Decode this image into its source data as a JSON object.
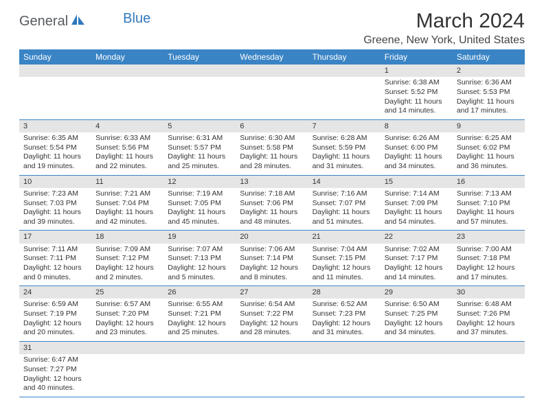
{
  "brand": {
    "part1": "General",
    "part2": "Blue"
  },
  "title": "March 2024",
  "location": "Greene, New York, United States",
  "type": "table",
  "header_bg": "#3a84c5",
  "header_fg": "#ffffff",
  "daynum_bg": "#e5e5e5",
  "border_color": "#3a84c5",
  "columns": [
    "Sunday",
    "Monday",
    "Tuesday",
    "Wednesday",
    "Thursday",
    "Friday",
    "Saturday"
  ],
  "weeks": [
    {
      "nums": [
        "",
        "",
        "",
        "",
        "",
        "1",
        "2"
      ],
      "cells": [
        null,
        null,
        null,
        null,
        null,
        {
          "sunrise": "Sunrise: 6:38 AM",
          "sunset": "Sunset: 5:52 PM",
          "d1": "Daylight: 11 hours",
          "d2": "and 14 minutes."
        },
        {
          "sunrise": "Sunrise: 6:36 AM",
          "sunset": "Sunset: 5:53 PM",
          "d1": "Daylight: 11 hours",
          "d2": "and 17 minutes."
        }
      ]
    },
    {
      "nums": [
        "3",
        "4",
        "5",
        "6",
        "7",
        "8",
        "9"
      ],
      "cells": [
        {
          "sunrise": "Sunrise: 6:35 AM",
          "sunset": "Sunset: 5:54 PM",
          "d1": "Daylight: 11 hours",
          "d2": "and 19 minutes."
        },
        {
          "sunrise": "Sunrise: 6:33 AM",
          "sunset": "Sunset: 5:56 PM",
          "d1": "Daylight: 11 hours",
          "d2": "and 22 minutes."
        },
        {
          "sunrise": "Sunrise: 6:31 AM",
          "sunset": "Sunset: 5:57 PM",
          "d1": "Daylight: 11 hours",
          "d2": "and 25 minutes."
        },
        {
          "sunrise": "Sunrise: 6:30 AM",
          "sunset": "Sunset: 5:58 PM",
          "d1": "Daylight: 11 hours",
          "d2": "and 28 minutes."
        },
        {
          "sunrise": "Sunrise: 6:28 AM",
          "sunset": "Sunset: 5:59 PM",
          "d1": "Daylight: 11 hours",
          "d2": "and 31 minutes."
        },
        {
          "sunrise": "Sunrise: 6:26 AM",
          "sunset": "Sunset: 6:00 PM",
          "d1": "Daylight: 11 hours",
          "d2": "and 34 minutes."
        },
        {
          "sunrise": "Sunrise: 6:25 AM",
          "sunset": "Sunset: 6:02 PM",
          "d1": "Daylight: 11 hours",
          "d2": "and 36 minutes."
        }
      ]
    },
    {
      "nums": [
        "10",
        "11",
        "12",
        "13",
        "14",
        "15",
        "16"
      ],
      "cells": [
        {
          "sunrise": "Sunrise: 7:23 AM",
          "sunset": "Sunset: 7:03 PM",
          "d1": "Daylight: 11 hours",
          "d2": "and 39 minutes."
        },
        {
          "sunrise": "Sunrise: 7:21 AM",
          "sunset": "Sunset: 7:04 PM",
          "d1": "Daylight: 11 hours",
          "d2": "and 42 minutes."
        },
        {
          "sunrise": "Sunrise: 7:19 AM",
          "sunset": "Sunset: 7:05 PM",
          "d1": "Daylight: 11 hours",
          "d2": "and 45 minutes."
        },
        {
          "sunrise": "Sunrise: 7:18 AM",
          "sunset": "Sunset: 7:06 PM",
          "d1": "Daylight: 11 hours",
          "d2": "and 48 minutes."
        },
        {
          "sunrise": "Sunrise: 7:16 AM",
          "sunset": "Sunset: 7:07 PM",
          "d1": "Daylight: 11 hours",
          "d2": "and 51 minutes."
        },
        {
          "sunrise": "Sunrise: 7:14 AM",
          "sunset": "Sunset: 7:09 PM",
          "d1": "Daylight: 11 hours",
          "d2": "and 54 minutes."
        },
        {
          "sunrise": "Sunrise: 7:13 AM",
          "sunset": "Sunset: 7:10 PM",
          "d1": "Daylight: 11 hours",
          "d2": "and 57 minutes."
        }
      ]
    },
    {
      "nums": [
        "17",
        "18",
        "19",
        "20",
        "21",
        "22",
        "23"
      ],
      "cells": [
        {
          "sunrise": "Sunrise: 7:11 AM",
          "sunset": "Sunset: 7:11 PM",
          "d1": "Daylight: 12 hours",
          "d2": "and 0 minutes."
        },
        {
          "sunrise": "Sunrise: 7:09 AM",
          "sunset": "Sunset: 7:12 PM",
          "d1": "Daylight: 12 hours",
          "d2": "and 2 minutes."
        },
        {
          "sunrise": "Sunrise: 7:07 AM",
          "sunset": "Sunset: 7:13 PM",
          "d1": "Daylight: 12 hours",
          "d2": "and 5 minutes."
        },
        {
          "sunrise": "Sunrise: 7:06 AM",
          "sunset": "Sunset: 7:14 PM",
          "d1": "Daylight: 12 hours",
          "d2": "and 8 minutes."
        },
        {
          "sunrise": "Sunrise: 7:04 AM",
          "sunset": "Sunset: 7:15 PM",
          "d1": "Daylight: 12 hours",
          "d2": "and 11 minutes."
        },
        {
          "sunrise": "Sunrise: 7:02 AM",
          "sunset": "Sunset: 7:17 PM",
          "d1": "Daylight: 12 hours",
          "d2": "and 14 minutes."
        },
        {
          "sunrise": "Sunrise: 7:00 AM",
          "sunset": "Sunset: 7:18 PM",
          "d1": "Daylight: 12 hours",
          "d2": "and 17 minutes."
        }
      ]
    },
    {
      "nums": [
        "24",
        "25",
        "26",
        "27",
        "28",
        "29",
        "30"
      ],
      "cells": [
        {
          "sunrise": "Sunrise: 6:59 AM",
          "sunset": "Sunset: 7:19 PM",
          "d1": "Daylight: 12 hours",
          "d2": "and 20 minutes."
        },
        {
          "sunrise": "Sunrise: 6:57 AM",
          "sunset": "Sunset: 7:20 PM",
          "d1": "Daylight: 12 hours",
          "d2": "and 23 minutes."
        },
        {
          "sunrise": "Sunrise: 6:55 AM",
          "sunset": "Sunset: 7:21 PM",
          "d1": "Daylight: 12 hours",
          "d2": "and 25 minutes."
        },
        {
          "sunrise": "Sunrise: 6:54 AM",
          "sunset": "Sunset: 7:22 PM",
          "d1": "Daylight: 12 hours",
          "d2": "and 28 minutes."
        },
        {
          "sunrise": "Sunrise: 6:52 AM",
          "sunset": "Sunset: 7:23 PM",
          "d1": "Daylight: 12 hours",
          "d2": "and 31 minutes."
        },
        {
          "sunrise": "Sunrise: 6:50 AM",
          "sunset": "Sunset: 7:25 PM",
          "d1": "Daylight: 12 hours",
          "d2": "and 34 minutes."
        },
        {
          "sunrise": "Sunrise: 6:48 AM",
          "sunset": "Sunset: 7:26 PM",
          "d1": "Daylight: 12 hours",
          "d2": "and 37 minutes."
        }
      ]
    },
    {
      "nums": [
        "31",
        "",
        "",
        "",
        "",
        "",
        ""
      ],
      "cells": [
        {
          "sunrise": "Sunrise: 6:47 AM",
          "sunset": "Sunset: 7:27 PM",
          "d1": "Daylight: 12 hours",
          "d2": "and 40 minutes."
        },
        null,
        null,
        null,
        null,
        null,
        null
      ]
    }
  ]
}
